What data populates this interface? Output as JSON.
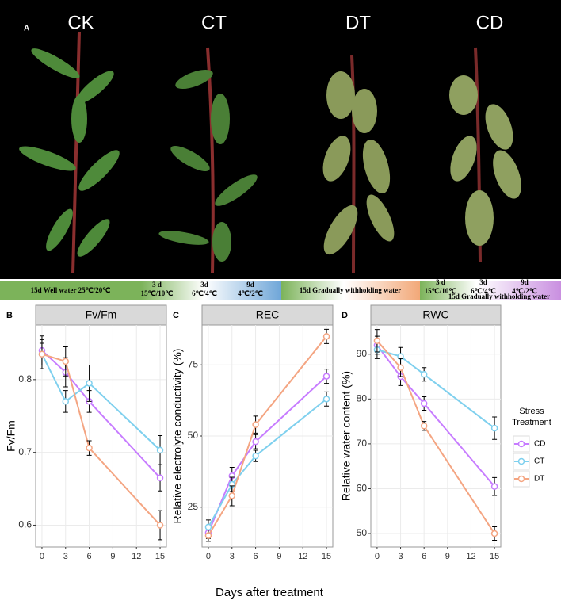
{
  "panel_a": {
    "letter": "A",
    "labels": [
      "CK",
      "CT",
      "DT",
      "CD"
    ],
    "treatments": {
      "ck": "15d Well water 25℃/20℃",
      "ct": [
        [
          "3 d",
          "15℃/10℃"
        ],
        [
          "3d",
          "6℃/4℃"
        ],
        [
          "9d",
          "4℃/2℃"
        ]
      ],
      "dt": "15d Gradually withholding water",
      "cd": [
        [
          "3 d",
          "15℃/10℃"
        ],
        [
          "3d",
          "6℃/4℃"
        ],
        [
          "9d",
          "4℃/2℃"
        ]
      ],
      "cd_water": "15d Gradually withholding water"
    }
  },
  "x_label": "Days after treatment",
  "legend_title": "Stress Treatment",
  "chart_data": [
    {
      "type": "line",
      "panel": "B",
      "title": "Fv/Fm",
      "y_label": "Fv/Fm",
      "x": [
        0,
        3,
        6,
        15
      ],
      "xlim": [
        -0.8,
        15.8
      ],
      "xticks": [
        0,
        3,
        6,
        9,
        12,
        15
      ],
      "ylim": [
        0.57,
        0.875
      ],
      "yticks": [
        0.6,
        0.7,
        0.8
      ],
      "grid": true,
      "series": [
        {
          "name": "CD",
          "color": "#c77cff",
          "values": [
            0.84,
            0.81,
            0.77,
            0.665
          ],
          "errors": [
            0.02,
            0.02,
            0.015,
            0.018
          ]
        },
        {
          "name": "CT",
          "color": "#7fd0ee",
          "values": [
            0.835,
            0.77,
            0.795,
            0.703
          ],
          "errors": [
            0.015,
            0.015,
            0.025,
            0.02
          ]
        },
        {
          "name": "DT",
          "color": "#f4a582",
          "values": [
            0.835,
            0.825,
            0.706,
            0.6
          ],
          "errors": [
            0.02,
            0.02,
            0.01,
            0.02
          ]
        }
      ]
    },
    {
      "type": "line",
      "panel": "C",
      "title": "REC",
      "y_label": "Relative electrolyte conductivity (%)",
      "x": [
        0,
        3,
        6,
        15
      ],
      "xlim": [
        -0.8,
        15.8
      ],
      "xticks": [
        0,
        3,
        6,
        9,
        12,
        15
      ],
      "ylim": [
        11,
        89
      ],
      "yticks": [
        25,
        50,
        75
      ],
      "grid": true,
      "series": [
        {
          "name": "CD",
          "color": "#c77cff",
          "values": [
            16,
            36,
            48,
            71
          ],
          "errors": [
            2,
            3,
            2.5,
            2.5
          ]
        },
        {
          "name": "CT",
          "color": "#7fd0ee",
          "values": [
            18,
            33,
            43,
            63
          ],
          "errors": [
            2.5,
            2.5,
            2,
            2.5
          ]
        },
        {
          "name": "DT",
          "color": "#f4a582",
          "values": [
            15,
            29,
            54,
            85
          ],
          "errors": [
            2,
            3.5,
            3,
            2.5
          ]
        }
      ]
    },
    {
      "type": "line",
      "panel": "D",
      "title": "RWC",
      "y_label": "Relative water content (%)",
      "x": [
        0,
        3,
        6,
        15
      ],
      "xlim": [
        -0.8,
        15.8
      ],
      "xticks": [
        0,
        3,
        6,
        9,
        12,
        15
      ],
      "ylim": [
        47,
        96.5
      ],
      "yticks": [
        50,
        60,
        70,
        80,
        90
      ],
      "grid": true,
      "series": [
        {
          "name": "CD",
          "color": "#c77cff",
          "values": [
            92,
            85,
            79,
            60.5
          ],
          "errors": [
            2,
            2,
            1.5,
            2
          ]
        },
        {
          "name": "CT",
          "color": "#7fd0ee",
          "values": [
            91,
            89.5,
            85.5,
            73.5
          ],
          "errors": [
            2,
            2,
            1.5,
            2.5
          ]
        },
        {
          "name": "DT",
          "color": "#f4a582",
          "values": [
            93,
            87,
            74,
            50
          ],
          "errors": [
            2.5,
            2,
            1,
            1.5
          ]
        }
      ]
    }
  ]
}
